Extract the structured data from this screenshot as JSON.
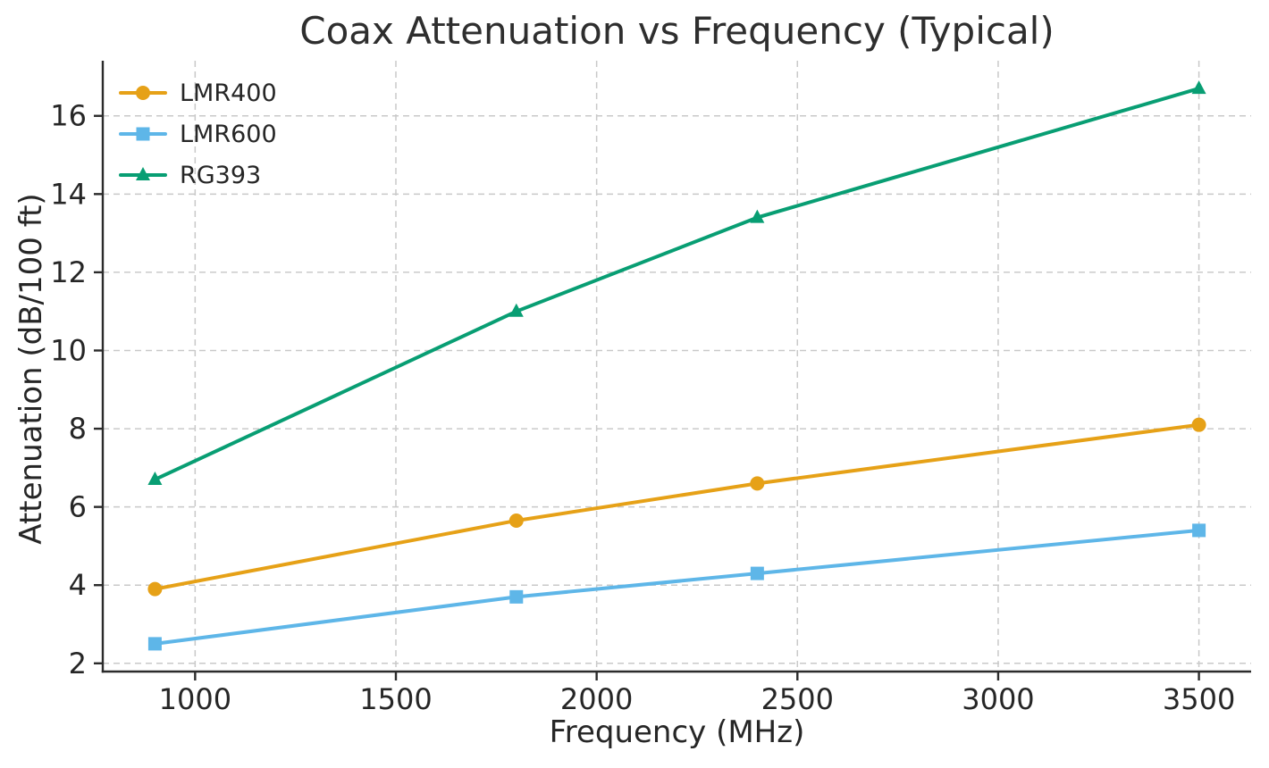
{
  "chart_data": {
    "type": "line",
    "title": "Coax Attenuation vs Frequency (Typical)",
    "xlabel": "Frequency (MHz)",
    "ylabel": "Attenuation (dB/100 ft)",
    "x": [
      900,
      1800,
      2400,
      3500
    ],
    "series": [
      {
        "name": "LMR400",
        "color": "#E6A117",
        "marker": "circle",
        "values": [
          3.9,
          5.65,
          6.6,
          8.1
        ]
      },
      {
        "name": "LMR600",
        "color": "#5EB6E8",
        "marker": "square",
        "values": [
          2.5,
          3.7,
          4.3,
          5.4
        ]
      },
      {
        "name": "RG393",
        "color": "#089E73",
        "marker": "triangle",
        "values": [
          6.7,
          11.0,
          13.4,
          16.7
        ]
      }
    ],
    "xticks": [
      1000,
      1500,
      2000,
      2500,
      3000,
      3500
    ],
    "yticks": [
      2,
      4,
      6,
      8,
      10,
      12,
      14,
      16
    ],
    "xlim": [
      770,
      3630
    ],
    "ylim": [
      1.79,
      17.41
    ],
    "grid": true,
    "grid_style": "dashed",
    "legend_position": "upper left",
    "legend_frame": false,
    "colors": {
      "grid": "#C9C9C9",
      "spine": "#2B2B2B",
      "tick_text": "#262626",
      "background": "#FFFFFF"
    }
  }
}
